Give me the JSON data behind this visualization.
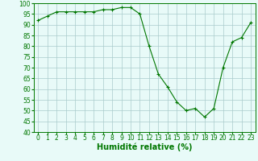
{
  "x_data": [
    0,
    1,
    2,
    3,
    4,
    5,
    6,
    7,
    8,
    9,
    10,
    11,
    12,
    13,
    14,
    15,
    16,
    17,
    18,
    19,
    20,
    21,
    22,
    23
  ],
  "y_data": [
    92,
    94,
    96,
    96,
    96,
    96,
    96,
    97,
    97,
    98,
    98,
    95,
    80,
    67,
    61,
    54,
    50,
    51,
    47,
    51,
    70,
    82,
    84,
    91
  ],
  "ylim": [
    40,
    100
  ],
  "xlim": [
    -0.5,
    23.5
  ],
  "yticks": [
    40,
    45,
    50,
    55,
    60,
    65,
    70,
    75,
    80,
    85,
    90,
    95,
    100
  ],
  "xticks": [
    0,
    1,
    2,
    3,
    4,
    5,
    6,
    7,
    8,
    9,
    10,
    11,
    12,
    13,
    14,
    15,
    16,
    17,
    18,
    19,
    20,
    21,
    22,
    23
  ],
  "xlabel": "Humidité relative (%)",
  "line_color": "#007700",
  "marker_color": "#007700",
  "bg_color": "#e8faf8",
  "grid_color": "#aacccc",
  "axis_color": "#007700",
  "tick_color": "#007700",
  "xlabel_color": "#007700",
  "xlabel_fontsize": 7,
  "tick_fontsize": 5.5
}
